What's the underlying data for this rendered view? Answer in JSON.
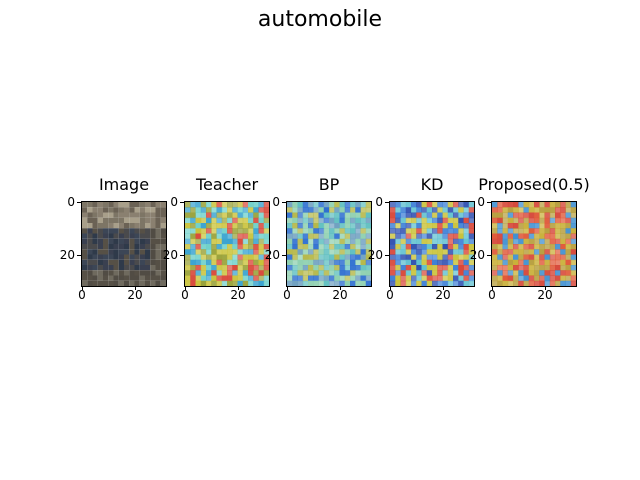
{
  "suptitle": "automobile",
  "panels": [
    {
      "title": "Image",
      "kind": "photo"
    },
    {
      "title": "Teacher",
      "kind": "heatmap",
      "palette": [
        "#c9c23a",
        "#d9483a",
        "#3aa3d0",
        "#6fd0c9",
        "#9aa23a"
      ]
    },
    {
      "title": "BP",
      "kind": "heatmap",
      "palette": [
        "#5fbfc0",
        "#2f6fd0",
        "#b6b84a",
        "#8fd0b0",
        "#6fa0c0"
      ]
    },
    {
      "title": "KD",
      "kind": "heatmap",
      "palette": [
        "#3d7fd6",
        "#c9c23a",
        "#d9483a",
        "#5fc0cf",
        "#2f4fb0"
      ]
    },
    {
      "title": "Proposed(0.5)",
      "kind": "heatmap",
      "palette": [
        "#d6483a",
        "#c9b03a",
        "#e05a3a",
        "#b8a040",
        "#3f8fd0"
      ]
    }
  ],
  "axes": {
    "yticks": [
      "0",
      "20"
    ],
    "xticks": [
      "0",
      "20"
    ]
  }
}
